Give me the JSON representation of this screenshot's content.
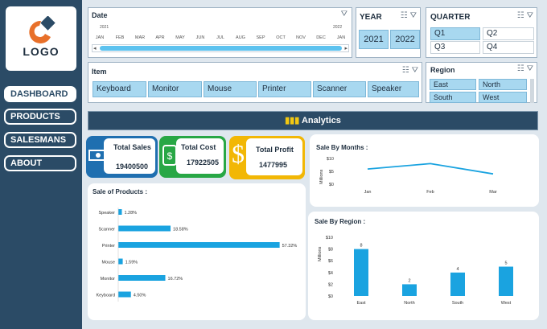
{
  "logo": {
    "text": "LOGO"
  },
  "nav": [
    {
      "label": "DASHBOARD",
      "active": true
    },
    {
      "label": "PRODUCTS",
      "active": false
    },
    {
      "label": "SALESMANS",
      "active": false
    },
    {
      "label": "ABOUT",
      "active": false
    }
  ],
  "date_slicer": {
    "title": "Date",
    "year_start": "2021",
    "year_end": "2022",
    "months": [
      "JAN",
      "FEB",
      "MAR",
      "APR",
      "MAY",
      "JUN",
      "JUL",
      "AUG",
      "SEP",
      "OCT",
      "NOV",
      "DEC",
      "JAN"
    ]
  },
  "year_slicer": {
    "title": "YEAR",
    "items": [
      "2021",
      "2022"
    ]
  },
  "quarter_slicer": {
    "title": "QUARTER",
    "items": [
      "Q1",
      "Q2",
      "Q3",
      "Q4"
    ]
  },
  "item_slicer": {
    "title": "Item",
    "items": [
      "Keyboard",
      "Monitor",
      "Mouse",
      "Printer",
      "Scanner",
      "Speaker"
    ]
  },
  "region_slicer": {
    "title": "Region",
    "items": [
      "East",
      "North",
      "South",
      "West"
    ]
  },
  "banner": {
    "label": "Analytics"
  },
  "kpis": {
    "sales": {
      "label": "Total Sales",
      "value": "19400500",
      "color": "#1f6fb0"
    },
    "cost": {
      "label": "Total Cost",
      "value": "17922505",
      "color": "#28a745"
    },
    "profit": {
      "label": "Total Profit",
      "value": "1477995",
      "color": "#f2b705"
    }
  },
  "chart_data": [
    {
      "type": "bar",
      "orientation": "horizontal",
      "title": "Sale of Products :",
      "categories": [
        "Speaker",
        "Scanner",
        "Printer",
        "Mouse",
        "Monitor",
        "Keyboard"
      ],
      "values": [
        1.28,
        18.58,
        57.32,
        1.59,
        16.72,
        4.5
      ],
      "labels": [
        "1.28%",
        "18.58%",
        "57.32%",
        "1.59%",
        "16.72%",
        "4.50%"
      ],
      "xlim": [
        0,
        60
      ]
    },
    {
      "type": "line",
      "title": "Sale By Months :",
      "ylabel": "Millions",
      "categories": [
        "Jan",
        "Feb",
        "Mar"
      ],
      "values": [
        5.9,
        8.0,
        4.0
      ],
      "yticks": [
        "$0",
        "$5",
        "$10"
      ],
      "ylim": [
        0,
        10
      ]
    },
    {
      "type": "bar",
      "title": "Sale By Region :",
      "ylabel": "Millions",
      "categories": [
        "East",
        "North",
        "South",
        "West"
      ],
      "values": [
        8,
        2,
        4,
        5
      ],
      "labels": [
        "8",
        "2",
        "4",
        "5"
      ],
      "yticks": [
        "$0",
        "$2",
        "$4",
        "$6",
        "$8",
        "$10"
      ],
      "ylim": [
        0,
        10
      ]
    }
  ],
  "colors": {
    "accent": "#1aa3e0",
    "sidebar": "#2b4b66"
  }
}
